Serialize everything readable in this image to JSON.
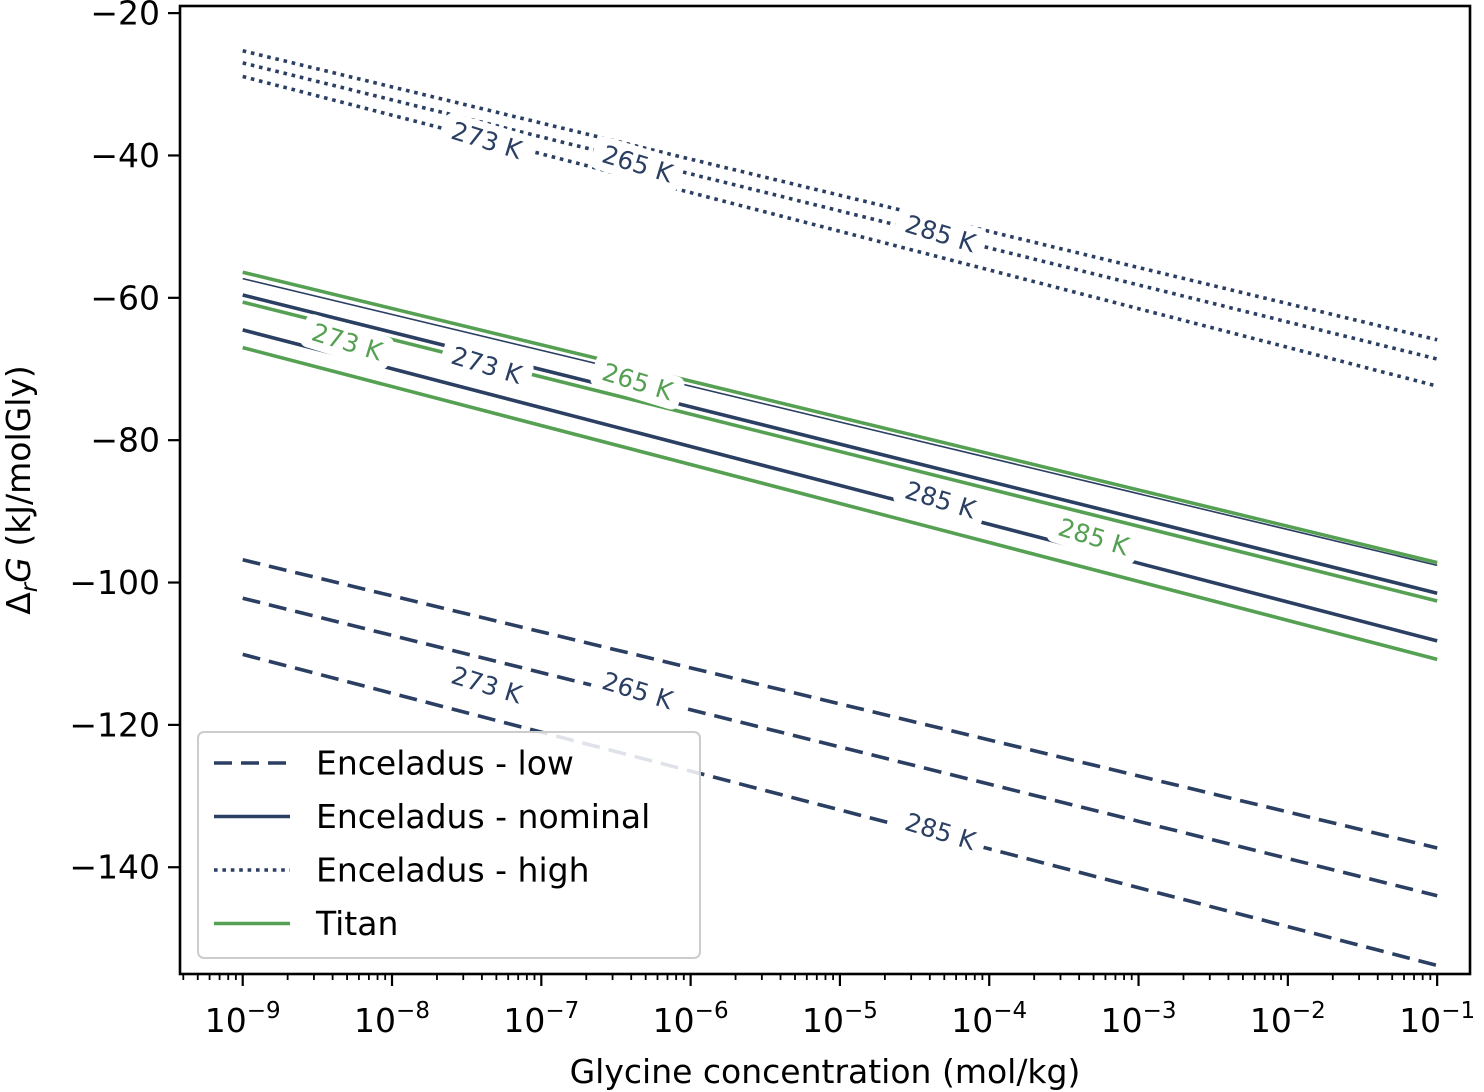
{
  "chart_data": {
    "type": "line",
    "xlabel": "Glycine concentration (mol/kg)",
    "ylabel_parts": [
      "Δ",
      "r",
      "G",
      " (kJ/molGly)"
    ],
    "xscale": "log",
    "x_exponent_range": [
      -9.42,
      -0.78
    ],
    "xlim": [
      3.8e-10,
      0.166
    ],
    "ylim": [
      -155,
      -19
    ],
    "x_ticks": [
      {
        "exp": -9,
        "base": "10",
        "sup": "−9"
      },
      {
        "exp": -8,
        "base": "10",
        "sup": "−8"
      },
      {
        "exp": -7,
        "base": "10",
        "sup": "−7"
      },
      {
        "exp": -6,
        "base": "10",
        "sup": "−6"
      },
      {
        "exp": -5,
        "base": "10",
        "sup": "−5"
      },
      {
        "exp": -4,
        "base": "10",
        "sup": "−4"
      },
      {
        "exp": -3,
        "base": "10",
        "sup": "−3"
      },
      {
        "exp": -2,
        "base": "10",
        "sup": "−2"
      },
      {
        "exp": -1,
        "base": "10",
        "sup": "−1"
      }
    ],
    "y_ticks": [
      {
        "value": -20,
        "label": "−20"
      },
      {
        "value": -40,
        "label": "−40"
      },
      {
        "value": -60,
        "label": "−60"
      },
      {
        "value": -80,
        "label": "−80"
      },
      {
        "value": -100,
        "label": "−100"
      },
      {
        "value": -120,
        "label": "−120"
      },
      {
        "value": -140,
        "label": "−140"
      }
    ],
    "colors": {
      "enceladus": "#2b3f63",
      "titan": "#55a052"
    },
    "series": [
      {
        "group": "Enceladus - low",
        "style": "dashed",
        "color": "#2b3f63",
        "x": [
          1e-09,
          0.1
        ],
        "y": [
          -96.8,
          -137.3
        ]
      },
      {
        "group": "Enceladus - low",
        "style": "dashed",
        "color": "#2b3f63",
        "x": [
          1e-09,
          0.1
        ],
        "y": [
          -102.2,
          -144.0
        ]
      },
      {
        "group": "Enceladus - low",
        "style": "dashed",
        "color": "#2b3f63",
        "x": [
          1e-09,
          0.1
        ],
        "y": [
          -110.1,
          -153.8
        ]
      },
      {
        "group": "Enceladus - nominal",
        "style": "thin",
        "color": "#2b3f63",
        "x": [
          1e-09,
          0.1
        ],
        "y": [
          -57.3,
          -97.6
        ]
      },
      {
        "group": "Enceladus - nominal",
        "style": "solid",
        "color": "#2b3f63",
        "x": [
          1e-09,
          0.1
        ],
        "y": [
          -59.6,
          -101.5
        ]
      },
      {
        "group": "Enceladus - nominal",
        "style": "solid",
        "color": "#2b3f63",
        "x": [
          1e-09,
          0.1
        ],
        "y": [
          -64.5,
          -108.2
        ]
      },
      {
        "group": "Enceladus - high",
        "style": "dotted",
        "color": "#2b3f63",
        "x": [
          1e-09,
          0.1
        ],
        "y": [
          -25.3,
          -65.9
        ]
      },
      {
        "group": "Enceladus - high",
        "style": "dotted",
        "color": "#2b3f63",
        "x": [
          1e-09,
          0.1
        ],
        "y": [
          -27.0,
          -68.6
        ]
      },
      {
        "group": "Enceladus - high",
        "style": "dotted",
        "color": "#2b3f63",
        "x": [
          1e-09,
          0.1
        ],
        "y": [
          -28.9,
          -72.4
        ]
      },
      {
        "group": "Titan",
        "style": "solid",
        "color": "#55a052",
        "x": [
          1e-09,
          0.1
        ],
        "y": [
          -56.4,
          -97.2
        ]
      },
      {
        "group": "Titan",
        "style": "solid",
        "color": "#55a052",
        "x": [
          1e-09,
          0.1
        ],
        "y": [
          -60.6,
          -102.6
        ]
      },
      {
        "group": "Titan",
        "style": "solid",
        "color": "#55a052",
        "x": [
          1e-09,
          0.1
        ],
        "y": [
          -67.0,
          -110.8
        ]
      }
    ],
    "contour_labels": [
      {
        "text": "273 K",
        "color": "#2b3f63",
        "x": 4.3e-08,
        "y": -37.9,
        "rot": 17
      },
      {
        "text": "265 K",
        "color": "#2b3f63",
        "x": 4.4e-07,
        "y": -41.2,
        "rot": 17
      },
      {
        "text": "285 K",
        "color": "#2b3f63",
        "x": 4.7e-05,
        "y": -51.0,
        "rot": 17
      },
      {
        "text": "273 K",
        "color": "#55a052",
        "x": 5e-09,
        "y": -66.2,
        "rot": 17
      },
      {
        "text": "273 K",
        "color": "#2b3f63",
        "x": 4.3e-08,
        "y": -69.5,
        "rot": 17
      },
      {
        "text": "265 K",
        "color": "#55a052",
        "x": 4.4e-07,
        "y": -71.8,
        "rot": 17
      },
      {
        "text": "285 K",
        "color": "#2b3f63",
        "x": 4.7e-05,
        "y": -88.4,
        "rot": 17
      },
      {
        "text": "285 K",
        "color": "#55a052",
        "x": 0.0005,
        "y": -93.6,
        "rot": 17
      },
      {
        "text": "273 K",
        "color": "#2b3f63",
        "x": 4.3e-08,
        "y": -114.4,
        "rot": 17
      },
      {
        "text": "265 K",
        "color": "#2b3f63",
        "x": 4.4e-07,
        "y": -115.2,
        "rot": 17
      },
      {
        "text": "285 K",
        "color": "#2b3f63",
        "x": 4.7e-05,
        "y": -135.0,
        "rot": 17
      }
    ],
    "legend": {
      "position": "lower-left",
      "entries": [
        {
          "label": "Enceladus - low",
          "style": "dashed",
          "color": "#2b3f63"
        },
        {
          "label": "Enceladus - nominal",
          "style": "solid",
          "color": "#2b3f63"
        },
        {
          "label": "Enceladus - high",
          "style": "dotted",
          "color": "#2b3f63"
        },
        {
          "label": "Titan",
          "style": "solid",
          "color": "#55a052"
        }
      ]
    }
  }
}
